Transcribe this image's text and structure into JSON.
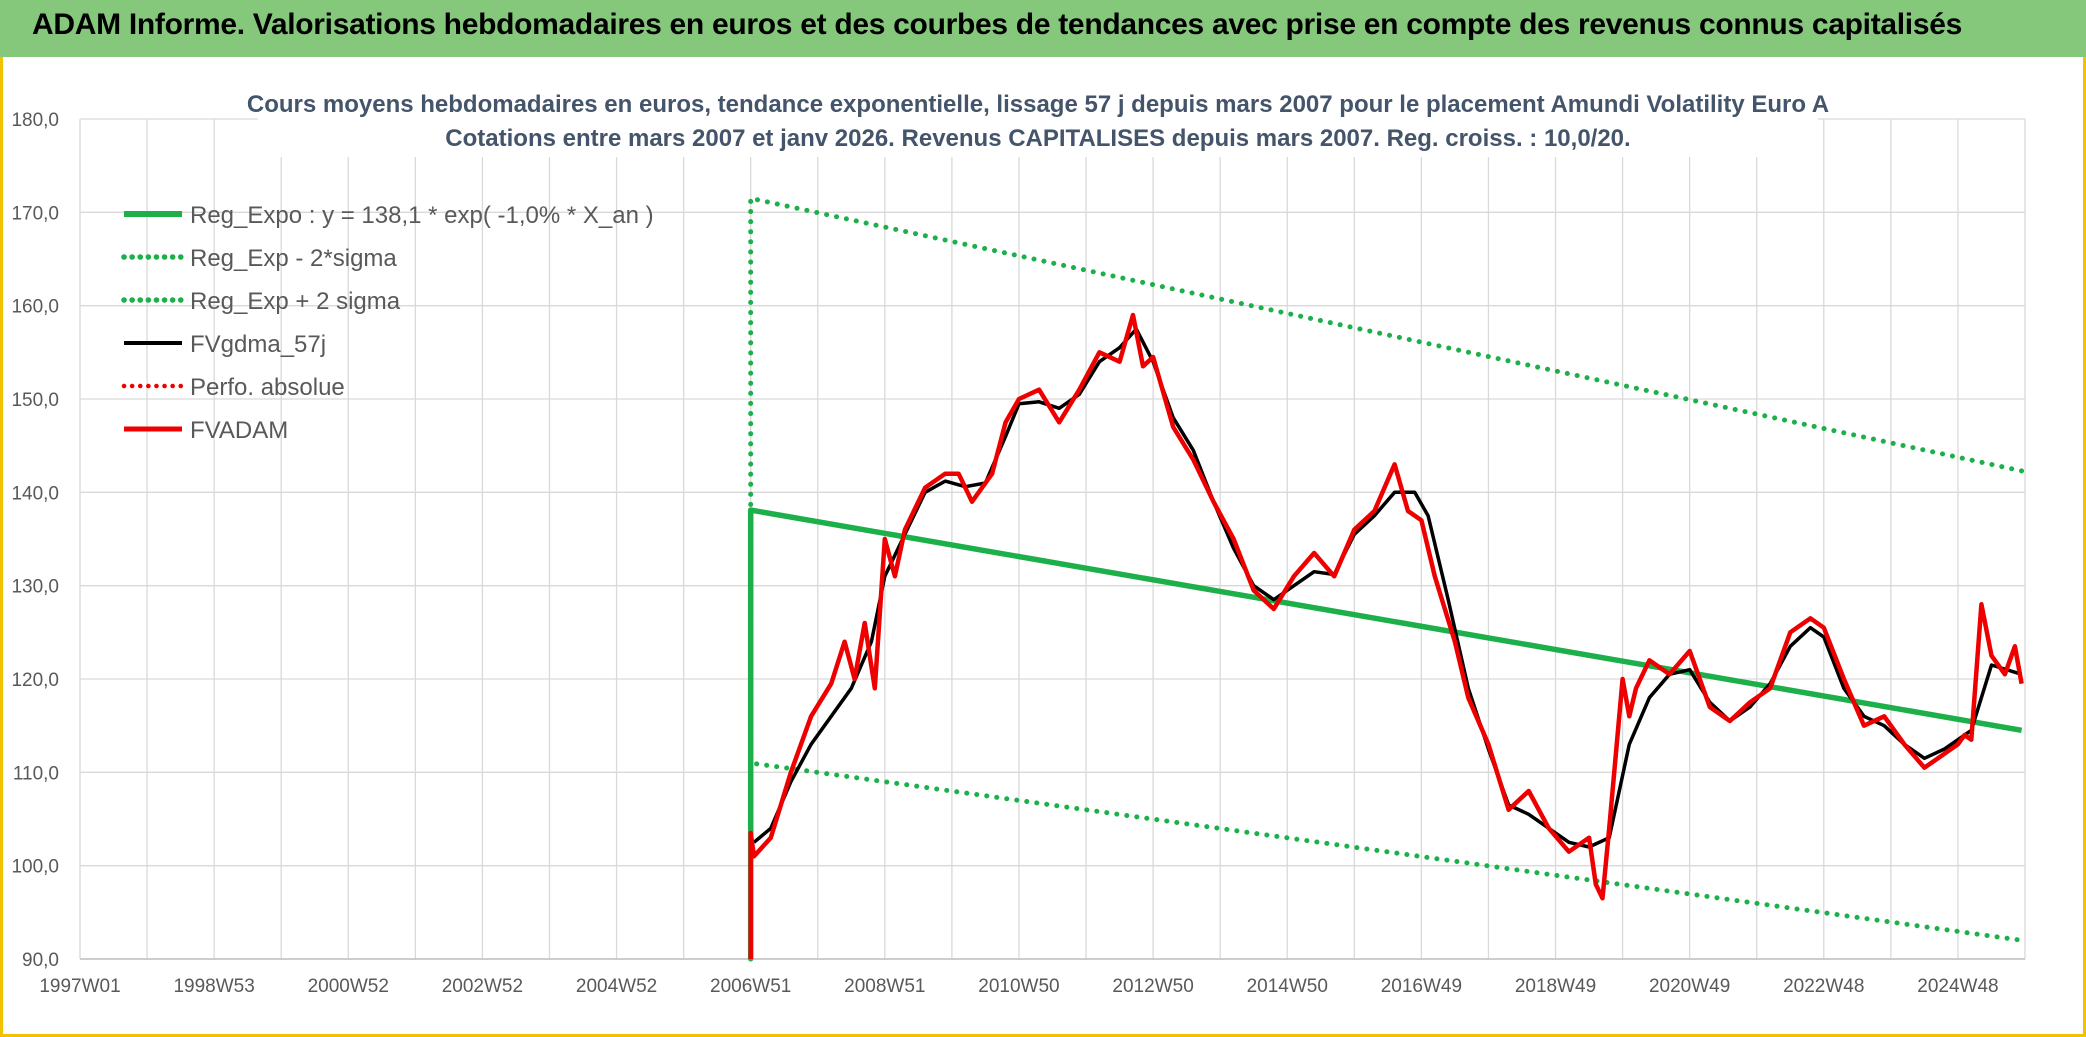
{
  "banner": {
    "title": "ADAM Informe. Valorisations hebdomadaires en euros et des courbes de tendances avec prise en compte des revenus connus capitalisés"
  },
  "colors": {
    "green": "#1db04a",
    "black": "#000000",
    "red": "#ee0000",
    "grid": "#d9d9d9",
    "banner": "#85c87c"
  },
  "chart_data": {
    "type": "line",
    "title": "Cours moyens hebdomadaires en euros, tendance exponentielle, lissage 57 j depuis mars 2007 pour le placement Amundi Volatility Euro A",
    "subtitle": "Cotations entre mars 2007 et janv 2026. Revenus CAPITALISES depuis mars 2007. Reg. croiss. : 10,0/20.",
    "xlabel": "",
    "ylabel": "",
    "ylim": [
      90,
      180
    ],
    "yticks": [
      "180,0",
      "170,0",
      "160,0",
      "150,0",
      "140,0",
      "130,0",
      "120,0",
      "110,0",
      "100,0",
      "90,0"
    ],
    "xlim": [
      1997.0,
      2026.0
    ],
    "xticks": [
      {
        "label": "1997W01",
        "x": 1997.0
      },
      {
        "label": "1998W53",
        "x": 1999.0
      },
      {
        "label": "2000W52",
        "x": 2001.0
      },
      {
        "label": "2002W52",
        "x": 2003.0
      },
      {
        "label": "2004W52",
        "x": 2005.0
      },
      {
        "label": "2006W51",
        "x": 2007.0
      },
      {
        "label": "2008W51",
        "x": 2009.0
      },
      {
        "label": "2010W50",
        "x": 2011.0
      },
      {
        "label": "2012W50",
        "x": 2013.0
      },
      {
        "label": "2014W50",
        "x": 2015.0
      },
      {
        "label": "2016W49",
        "x": 2017.0
      },
      {
        "label": "2018W49",
        "x": 2019.0
      },
      {
        "label": "2020W49",
        "x": 2021.0
      },
      {
        "label": "2022W48",
        "x": 2023.0
      },
      {
        "label": "2024W48",
        "x": 2025.0
      }
    ],
    "grid": true,
    "legend_position": "top-left",
    "series": [
      {
        "name": "Reg_Expo : y = 138,1 * exp( -1,0% *  X_an )",
        "style": "solid",
        "color": "#1db04a",
        "x": [
          2007.0,
          2007.0,
          2025.95
        ],
        "y": [
          90,
          138.1,
          114.5
        ]
      },
      {
        "name": "Reg_Exp - 2*sigma",
        "style": "dotted",
        "color": "#1db04a",
        "x": [
          2007.0,
          2007.0,
          2025.95
        ],
        "y": [
          90,
          111.0,
          92.0
        ]
      },
      {
        "name": "Reg_Exp + 2 sigma",
        "style": "dotted",
        "color": "#1db04a",
        "x": [
          2007.0,
          2007.0,
          2025.95
        ],
        "y": [
          90,
          171.5,
          142.3
        ]
      },
      {
        "name": "FVgdma_57j",
        "style": "solid",
        "color": "#000000",
        "x": [
          2007.05,
          2007.3,
          2007.6,
          2007.9,
          2008.2,
          2008.5,
          2008.8,
          2009.0,
          2009.3,
          2009.6,
          2009.9,
          2010.2,
          2010.5,
          2010.8,
          2011.0,
          2011.3,
          2011.6,
          2011.9,
          2012.2,
          2012.5,
          2012.75,
          2013.0,
          2013.3,
          2013.6,
          2013.9,
          2014.2,
          2014.5,
          2014.8,
          2015.1,
          2015.4,
          2015.7,
          2016.0,
          2016.3,
          2016.6,
          2016.9,
          2017.1,
          2017.4,
          2017.7,
          2018.0,
          2018.3,
          2018.6,
          2018.9,
          2019.2,
          2019.5,
          2019.8,
          2020.1,
          2020.4,
          2020.7,
          2021.0,
          2021.3,
          2021.6,
          2021.9,
          2022.2,
          2022.5,
          2022.8,
          2023.0,
          2023.3,
          2023.6,
          2023.9,
          2024.2,
          2024.5,
          2024.8,
          2025.0,
          2025.2,
          2025.5,
          2025.95
        ],
        "y": [
          102.5,
          104,
          109,
          113,
          116,
          119,
          124,
          131,
          135.5,
          140,
          141.2,
          140.6,
          141,
          146,
          149.5,
          149.7,
          149,
          150.5,
          154,
          155.5,
          157.5,
          154,
          148,
          144.5,
          139,
          134,
          130,
          128.5,
          130,
          131.5,
          131.2,
          135.5,
          137.5,
          140,
          140,
          137.5,
          128.5,
          119,
          112.5,
          106.5,
          105.5,
          104,
          102.5,
          102,
          103,
          113,
          118,
          120.5,
          121,
          117.5,
          115.5,
          117,
          119.5,
          123.5,
          125.5,
          124.5,
          119,
          116,
          115,
          113,
          111.5,
          112.5,
          113.5,
          114.5,
          121.5,
          120.5
        ]
      },
      {
        "name": "Perfo. absolue",
        "style": "dotted",
        "color": "#ee0000",
        "x": [],
        "y": []
      },
      {
        "name": "FVADAM",
        "style": "solid",
        "color": "#ee0000",
        "x": [
          2007.0,
          2007.0,
          2007.05,
          2007.3,
          2007.6,
          2007.9,
          2008.2,
          2008.4,
          2008.55,
          2008.7,
          2008.85,
          2009.0,
          2009.15,
          2009.3,
          2009.6,
          2009.9,
          2010.1,
          2010.3,
          2010.6,
          2010.8,
          2011.0,
          2011.3,
          2011.6,
          2011.9,
          2012.2,
          2012.5,
          2012.7,
          2012.85,
          2013.0,
          2013.3,
          2013.6,
          2013.9,
          2014.2,
          2014.5,
          2014.8,
          2015.1,
          2015.4,
          2015.7,
          2016.0,
          2016.3,
          2016.6,
          2016.8,
          2017.0,
          2017.2,
          2017.5,
          2017.7,
          2018.0,
          2018.3,
          2018.6,
          2018.9,
          2019.2,
          2019.5,
          2019.6,
          2019.7,
          2019.8,
          2020.0,
          2020.1,
          2020.2,
          2020.4,
          2020.7,
          2021.0,
          2021.3,
          2021.6,
          2021.9,
          2022.2,
          2022.5,
          2022.8,
          2023.0,
          2023.3,
          2023.6,
          2023.9,
          2024.2,
          2024.5,
          2024.8,
          2025.0,
          2025.1,
          2025.2,
          2025.35,
          2025.5,
          2025.7,
          2025.85,
          2025.95
        ],
        "y": [
          90,
          103.5,
          101,
          103,
          110,
          116,
          119.5,
          124,
          120,
          126,
          119,
          135,
          131,
          136,
          140.5,
          142,
          142,
          139,
          142,
          147.5,
          150,
          151,
          147.5,
          151,
          155,
          154,
          159,
          153.5,
          154.5,
          147,
          143.5,
          139,
          135,
          129.5,
          127.5,
          131,
          133.5,
          131,
          136,
          138,
          143,
          138,
          137,
          131,
          124,
          118,
          113,
          106,
          108,
          104,
          101.5,
          103,
          98,
          96.5,
          104,
          120,
          116,
          119,
          122,
          120.5,
          123,
          117,
          115.5,
          117.5,
          119,
          125,
          126.5,
          125.5,
          120,
          115,
          116,
          113,
          110.5,
          112,
          113,
          114,
          113.5,
          128,
          122.5,
          120.5,
          123.5,
          119.5
        ]
      }
    ]
  }
}
